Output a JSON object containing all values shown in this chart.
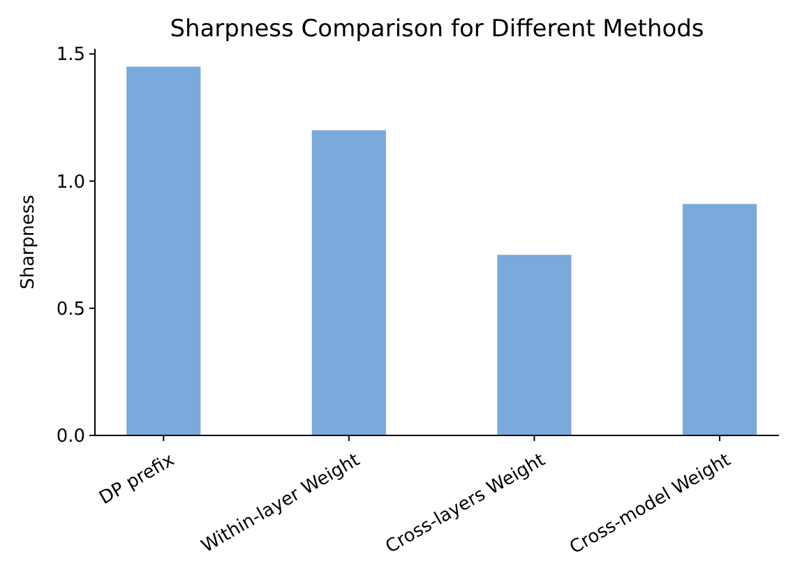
{
  "chart_data": {
    "type": "bar",
    "title": "Sharpness Comparison for Different Methods",
    "ylabel": "Sharpness",
    "categories": [
      "DP prefix",
      "Within-layer Weight",
      "Cross-layers Weight",
      "Cross-model Weight"
    ],
    "values": [
      1.45,
      1.2,
      0.71,
      0.91
    ],
    "color": "#7aaadb",
    "ylim": [
      0,
      1.52
    ],
    "yticks": [
      {
        "value": 0,
        "label": "0.0"
      },
      {
        "value": 0.5,
        "label": "0.5"
      },
      {
        "value": 1,
        "label": "1.0"
      },
      {
        "value": 1.5,
        "label": "1.5"
      }
    ],
    "grid": false
  }
}
